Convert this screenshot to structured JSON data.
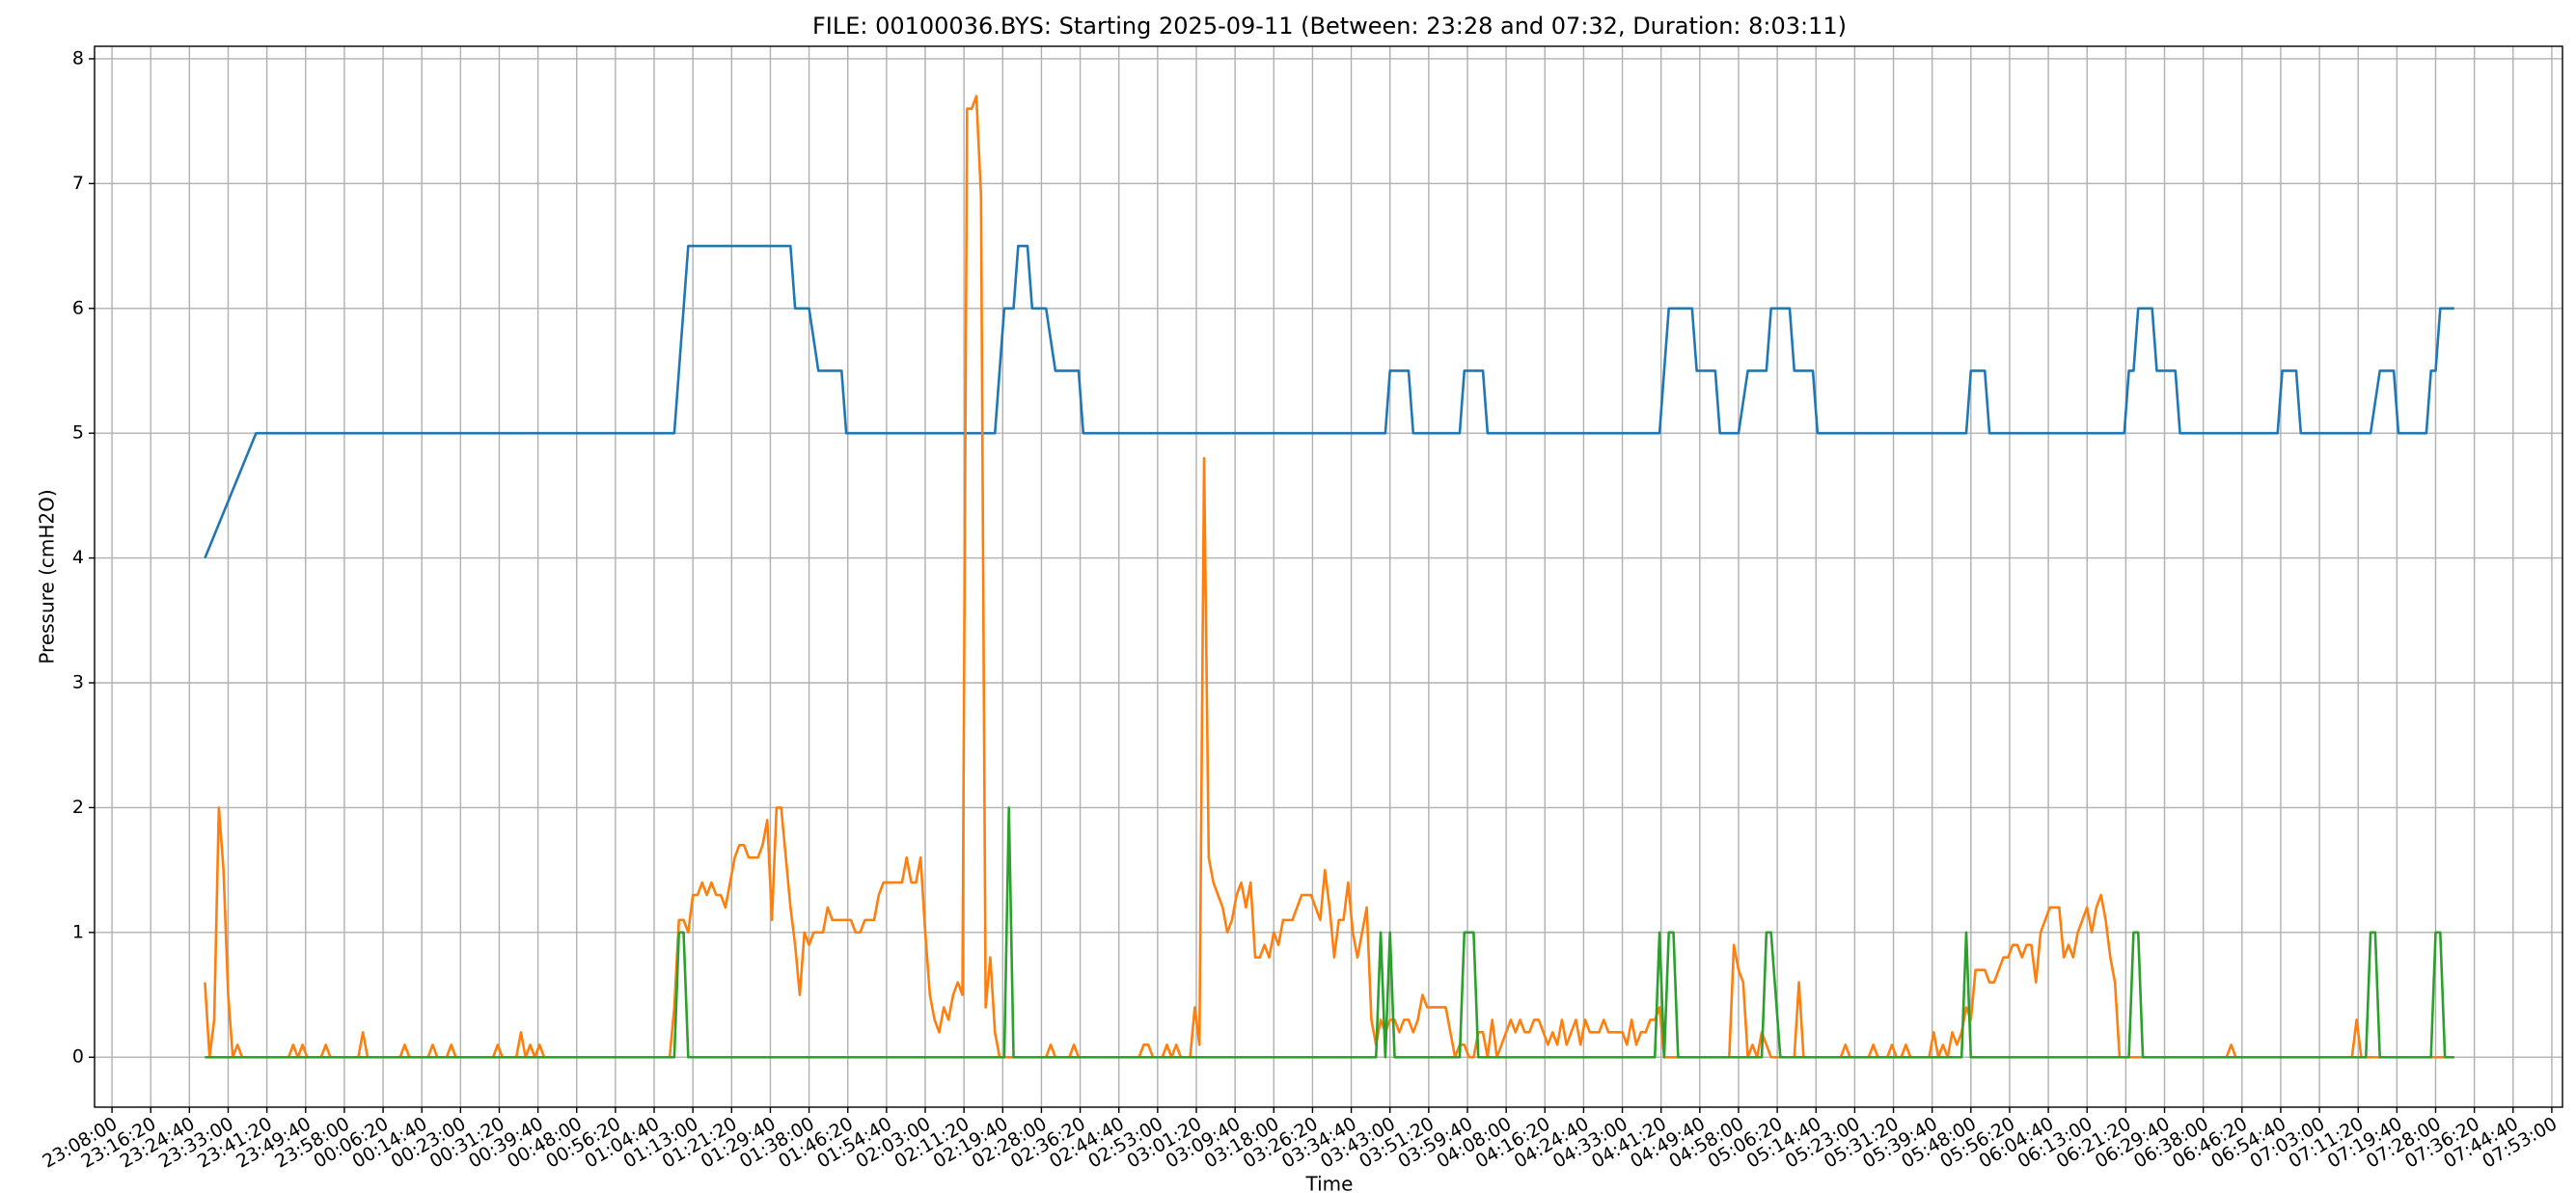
{
  "chart_data": {
    "type": "line",
    "title": "FILE: 00100036.BYS: Starting 2025-09-11 (Between: 23:28 and 07:32, Duration: 8:03:11)",
    "x_label": "Time",
    "y_label": "Pressure (cmH2O)",
    "grid": true,
    "xlim": [
      "23:04:15",
      "07:55:18"
    ],
    "ylim": [
      -0.4,
      8.1
    ],
    "yticks": [
      0,
      1,
      2,
      3,
      4,
      5,
      6,
      7,
      8
    ],
    "xticks": [
      "23:08:00",
      "23:16:20",
      "23:24:40",
      "23:33:00",
      "23:41:20",
      "23:49:40",
      "23:58:00",
      "00:06:20",
      "00:14:40",
      "00:23:00",
      "00:31:20",
      "00:39:40",
      "00:48:00",
      "00:56:20",
      "01:04:40",
      "01:13:00",
      "01:21:20",
      "01:29:40",
      "01:38:00",
      "01:46:20",
      "01:54:40",
      "02:03:00",
      "02:11:20",
      "02:19:40",
      "02:28:00",
      "02:36:20",
      "02:44:40",
      "02:53:00",
      "03:01:20",
      "03:09:40",
      "03:18:00",
      "03:26:20",
      "03:34:40",
      "03:43:00",
      "03:51:20",
      "03:59:40",
      "04:08:00",
      "04:16:20",
      "04:24:40",
      "04:33:00",
      "04:41:20",
      "04:49:40",
      "04:58:00",
      "05:06:20",
      "05:14:40",
      "05:23:00",
      "05:31:20",
      "05:39:40",
      "05:48:00",
      "05:56:20",
      "06:04:40",
      "06:13:00",
      "06:21:20",
      "06:29:40",
      "06:38:00",
      "06:46:20",
      "06:54:40",
      "07:03:00",
      "07:11:20",
      "07:19:40",
      "07:28:00",
      "07:36:20",
      "07:44:40",
      "07:53:00"
    ],
    "series": [
      {
        "color": "#1f77b4",
        "x": [
          "23:28:00",
          "23:39:00",
          "01:09:00",
          "01:12:00",
          "01:34:00",
          "01:35:00",
          "01:38:00",
          "01:40:00",
          "01:45:00",
          "01:46:00",
          "02:18:00",
          "02:20:00",
          "02:22:00",
          "02:23:00",
          "02:25:00",
          "02:26:00",
          "02:29:00",
          "02:31:00",
          "02:36:00",
          "02:37:00",
          "03:42:00",
          "03:43:00",
          "03:47:00",
          "03:48:00",
          "03:58:00",
          "03:59:00",
          "04:03:00",
          "04:04:00",
          "04:41:00",
          "04:43:00",
          "04:48:00",
          "04:49:00",
          "04:53:00",
          "04:54:00",
          "04:58:00",
          "05:00:00",
          "05:04:00",
          "05:05:00",
          "05:09:00",
          "05:10:00",
          "05:14:00",
          "05:15:00",
          "05:47:00",
          "05:48:00",
          "05:51:00",
          "05:52:00",
          "06:21:00",
          "06:22:00",
          "06:23:00",
          "06:24:00",
          "06:27:00",
          "06:28:00",
          "06:32:00",
          "06:33:00",
          "06:54:00",
          "06:55:00",
          "06:58:00",
          "06:59:00",
          "07:14:00",
          "07:16:00",
          "07:19:00",
          "07:20:00",
          "07:26:00",
          "07:27:00",
          "07:28:00",
          "07:29:00",
          "07:32:00"
        ],
        "values": [
          4,
          5,
          5,
          6.5,
          6.5,
          6,
          6,
          5.5,
          5.5,
          5,
          5,
          6,
          6,
          6.5,
          6.5,
          6,
          6,
          5.5,
          5.5,
          5,
          5,
          5.5,
          5.5,
          5,
          5,
          5.5,
          5.5,
          5,
          5,
          6,
          6,
          5.5,
          5.5,
          5,
          5,
          5.5,
          5.5,
          6,
          6,
          5.5,
          5.5,
          5,
          5,
          5.5,
          5.5,
          5,
          5,
          5.5,
          5.5,
          6,
          6,
          5.5,
          5.5,
          5,
          5,
          5.5,
          5.5,
          5,
          5,
          5.5,
          5.5,
          5,
          5,
          5.5,
          5.5,
          6,
          6
        ]
      },
      {
        "color": "#ff7f0e",
        "x": [
          "23:28:00",
          "23:29:00",
          "23:30:00",
          "23:31:00",
          "23:32:00",
          "23:33:00",
          "23:34:00",
          "23:35:00",
          "23:36:00",
          "23:46:00",
          "23:47:00",
          "23:48:00",
          "23:49:00",
          "23:50:00",
          "23:53:00",
          "23:54:00",
          "23:55:00",
          "00:01:00",
          "00:02:00",
          "00:03:00",
          "00:10:00",
          "00:11:00",
          "00:12:00",
          "00:16:00",
          "00:17:00",
          "00:18:00",
          "00:20:00",
          "00:21:00",
          "00:22:00",
          "00:30:00",
          "00:31:00",
          "00:32:00",
          "00:35:00",
          "00:36:00",
          "00:37:00",
          "00:38:00",
          "00:39:00",
          "00:40:00",
          "00:41:00",
          "01:08:00",
          "01:09:00",
          "01:10:00",
          "01:11:00",
          "01:12:00",
          "01:13:00",
          "01:14:00",
          "01:15:00",
          "01:16:00",
          "01:17:00",
          "01:18:00",
          "01:19:00",
          "01:20:00",
          "01:21:00",
          "01:22:00",
          "01:23:00",
          "01:24:00",
          "01:25:00",
          "01:26:00",
          "01:27:00",
          "01:28:00",
          "01:29:00",
          "01:30:00",
          "01:31:00",
          "01:32:00",
          "01:33:00",
          "01:34:00",
          "01:35:00",
          "01:36:00",
          "01:37:00",
          "01:38:00",
          "01:39:00",
          "01:40:00",
          "01:41:00",
          "01:42:00",
          "01:43:00",
          "01:44:00",
          "01:45:00",
          "01:46:00",
          "01:47:00",
          "01:48:00",
          "01:49:00",
          "01:50:00",
          "01:51:00",
          "01:52:00",
          "01:53:00",
          "01:54:00",
          "01:55:00",
          "01:56:00",
          "01:57:00",
          "01:58:00",
          "01:59:00",
          "02:00:00",
          "02:01:00",
          "02:02:00",
          "02:03:00",
          "02:04:00",
          "02:05:00",
          "02:06:00",
          "02:07:00",
          "02:08:00",
          "02:09:00",
          "02:10:00",
          "02:11:00",
          "02:12:00",
          "02:13:00",
          "02:14:00",
          "02:15:00",
          "02:16:00",
          "02:17:00",
          "02:18:00",
          "02:19:00",
          "02:29:00",
          "02:30:00",
          "02:31:00",
          "02:34:00",
          "02:35:00",
          "02:36:00",
          "02:49:00",
          "02:50:00",
          "02:51:00",
          "02:52:00",
          "02:54:00",
          "02:55:00",
          "02:56:00",
          "02:57:00",
          "02:58:00",
          "03:00:00",
          "03:01:00",
          "03:02:00",
          "03:03:00",
          "03:04:00",
          "03:05:00",
          "03:06:00",
          "03:07:00",
          "03:08:00",
          "03:09:00",
          "03:10:00",
          "03:11:00",
          "03:12:00",
          "03:13:00",
          "03:14:00",
          "03:15:00",
          "03:16:00",
          "03:17:00",
          "03:18:00",
          "03:19:00",
          "03:20:00",
          "03:21:00",
          "03:22:00",
          "03:23:00",
          "03:24:00",
          "03:25:00",
          "03:26:00",
          "03:27:00",
          "03:28:00",
          "03:29:00",
          "03:30:00",
          "03:31:00",
          "03:32:00",
          "03:33:00",
          "03:34:00",
          "03:35:00",
          "03:36:00",
          "03:37:00",
          "03:38:00",
          "03:39:00",
          "03:40:00",
          "03:41:00",
          "03:42:00",
          "03:43:00",
          "03:44:00",
          "03:45:00",
          "03:46:00",
          "03:47:00",
          "03:48:00",
          "03:49:00",
          "03:50:00",
          "03:51:00",
          "03:52:00",
          "03:53:00",
          "03:54:00",
          "03:55:00",
          "03:56:00",
          "03:57:00",
          "03:58:00",
          "03:59:00",
          "04:00:00",
          "04:01:00",
          "04:02:00",
          "04:03:00",
          "04:04:00",
          "04:05:00",
          "04:06:00",
          "04:07:00",
          "04:08:00",
          "04:09:00",
          "04:10:00",
          "04:11:00",
          "04:12:00",
          "04:13:00",
          "04:14:00",
          "04:15:00",
          "04:16:00",
          "04:17:00",
          "04:18:00",
          "04:19:00",
          "04:20:00",
          "04:21:00",
          "04:22:00",
          "04:23:00",
          "04:24:00",
          "04:25:00",
          "04:26:00",
          "04:27:00",
          "04:28:00",
          "04:29:00",
          "04:30:00",
          "04:31:00",
          "04:32:00",
          "04:33:00",
          "04:34:00",
          "04:35:00",
          "04:36:00",
          "04:37:00",
          "04:38:00",
          "04:39:00",
          "04:40:00",
          "04:41:00",
          "04:42:00",
          "04:56:00",
          "04:57:00",
          "04:58:00",
          "04:59:00",
          "05:00:00",
          "05:01:00",
          "05:02:00",
          "05:03:00",
          "05:04:00",
          "05:05:00",
          "05:10:00",
          "05:11:00",
          "05:12:00",
          "05:20:00",
          "05:21:00",
          "05:22:00",
          "05:26:00",
          "05:27:00",
          "05:28:00",
          "05:30:00",
          "05:31:00",
          "05:32:00",
          "05:33:00",
          "05:34:00",
          "05:35:00",
          "05:39:00",
          "05:40:00",
          "05:41:00",
          "05:42:00",
          "05:43:00",
          "05:44:00",
          "05:45:00",
          "05:46:00",
          "05:47:00",
          "05:48:00",
          "05:49:00",
          "05:50:00",
          "05:51:00",
          "05:52:00",
          "05:53:00",
          "05:54:00",
          "05:55:00",
          "05:56:00",
          "05:57:00",
          "05:58:00",
          "05:59:00",
          "06:00:00",
          "06:01:00",
          "06:02:00",
          "06:03:00",
          "06:04:00",
          "06:05:00",
          "06:06:00",
          "06:07:00",
          "06:08:00",
          "06:09:00",
          "06:10:00",
          "06:11:00",
          "06:12:00",
          "06:13:00",
          "06:14:00",
          "06:15:00",
          "06:16:00",
          "06:17:00",
          "06:18:00",
          "06:19:00",
          "06:20:00",
          "06:43:00",
          "06:44:00",
          "06:45:00",
          "07:10:00",
          "07:11:00",
          "07:12:00",
          "07:32:00"
        ],
        "values": [
          0.6,
          0,
          0.3,
          2.0,
          1.5,
          0.5,
          0,
          0.1,
          0,
          0,
          0.1,
          0,
          0.1,
          0,
          0,
          0.1,
          0,
          0,
          0.2,
          0,
          0,
          0.1,
          0,
          0,
          0.1,
          0,
          0,
          0.1,
          0,
          0,
          0.1,
          0,
          0,
          0.2,
          0,
          0.1,
          0,
          0.1,
          0,
          0,
          0.4,
          1.1,
          1.1,
          1.0,
          1.3,
          1.3,
          1.4,
          1.3,
          1.4,
          1.3,
          1.3,
          1.2,
          1.4,
          1.6,
          1.7,
          1.7,
          1.6,
          1.6,
          1.6,
          1.7,
          1.9,
          1.1,
          2.0,
          2.0,
          1.6,
          1.2,
          0.9,
          0.5,
          1.0,
          0.9,
          1.0,
          1.0,
          1.0,
          1.2,
          1.1,
          1.1,
          1.1,
          1.1,
          1.1,
          1.0,
          1.0,
          1.1,
          1.1,
          1.1,
          1.3,
          1.4,
          1.4,
          1.4,
          1.4,
          1.4,
          1.6,
          1.4,
          1.4,
          1.6,
          1.0,
          0.5,
          0.3,
          0.2,
          0.4,
          0.3,
          0.5,
          0.6,
          0.5,
          7.6,
          7.6,
          7.7,
          6.9,
          0.4,
          0.8,
          0.2,
          0,
          0,
          0.1,
          0,
          0,
          0.1,
          0,
          0,
          0.1,
          0.1,
          0,
          0,
          0.1,
          0,
          0.1,
          0,
          0,
          0.4,
          0.1,
          4.8,
          1.6,
          1.4,
          1.3,
          1.2,
          1.0,
          1.1,
          1.3,
          1.4,
          1.2,
          1.4,
          0.8,
          0.8,
          0.9,
          0.8,
          1.0,
          0.9,
          1.1,
          1.1,
          1.1,
          1.2,
          1.3,
          1.3,
          1.3,
          1.2,
          1.1,
          1.5,
          1.2,
          0.8,
          1.1,
          1.1,
          1.4,
          1.0,
          0.8,
          1.0,
          1.2,
          0.3,
          0.1,
          0.3,
          0.2,
          0.3,
          0.3,
          0.2,
          0.3,
          0.3,
          0.2,
          0.3,
          0.5,
          0.4,
          0.4,
          0.4,
          0.4,
          0.4,
          0.2,
          0,
          0.1,
          0.1,
          0,
          0,
          0.2,
          0.2,
          0,
          0.3,
          0,
          0.1,
          0.2,
          0.3,
          0.2,
          0.3,
          0.2,
          0.2,
          0.3,
          0.3,
          0.2,
          0.1,
          0.2,
          0.1,
          0.3,
          0.1,
          0.2,
          0.3,
          0.1,
          0.3,
          0.2,
          0.2,
          0.2,
          0.3,
          0.2,
          0.2,
          0.2,
          0.2,
          0.1,
          0.3,
          0.1,
          0.2,
          0.2,
          0.3,
          0.3,
          0.4,
          0,
          0,
          0.9,
          0.7,
          0.6,
          0,
          0.1,
          0,
          0.2,
          0.1,
          0,
          0,
          0.6,
          0,
          0,
          0.1,
          0,
          0,
          0.1,
          0,
          0,
          0.1,
          0,
          0,
          0.1,
          0,
          0,
          0.2,
          0,
          0.1,
          0,
          0.2,
          0.1,
          0.2,
          0.4,
          0.3,
          0.7,
          0.7,
          0.7,
          0.6,
          0.6,
          0.7,
          0.8,
          0.8,
          0.9,
          0.9,
          0.8,
          0.9,
          0.9,
          0.6,
          1.0,
          1.1,
          1.2,
          1.2,
          1.2,
          0.8,
          0.9,
          0.8,
          1.0,
          1.1,
          1.2,
          1.0,
          1.2,
          1.3,
          1.1,
          0.8,
          0.6,
          0,
          0,
          0.1,
          0,
          0,
          0.3,
          0,
          0
        ]
      },
      {
        "color": "#2ca02c",
        "x": [
          "23:28:00",
          "01:09:00",
          "01:10:00",
          "01:11:00",
          "01:12:00",
          "02:20:00",
          "02:21:00",
          "02:22:00",
          "03:40:00",
          "03:41:00",
          "03:42:00",
          "03:43:00",
          "03:44:00",
          "03:58:00",
          "03:59:00",
          "04:01:00",
          "04:02:00",
          "04:40:00",
          "04:41:00",
          "04:42:00",
          "04:43:00",
          "04:44:00",
          "04:45:00",
          "05:03:00",
          "05:04:00",
          "05:05:00",
          "05:07:00",
          "05:46:00",
          "05:47:00",
          "05:48:00",
          "06:22:00",
          "06:23:00",
          "06:24:00",
          "06:25:00",
          "07:13:00",
          "07:14:00",
          "07:15:00",
          "07:16:00",
          "07:27:00",
          "07:28:00",
          "07:29:00",
          "07:30:00",
          "07:32:00"
        ],
        "values": [
          0,
          0,
          1,
          1,
          0,
          0,
          2,
          0,
          0,
          1,
          0,
          1,
          0,
          0,
          1,
          1,
          0,
          0,
          1,
          0,
          1,
          1,
          0,
          0,
          1,
          1,
          0,
          0,
          1,
          0,
          0,
          1,
          1,
          0,
          0,
          1,
          1,
          0,
          0,
          1,
          1,
          0,
          0
        ]
      }
    ]
  }
}
